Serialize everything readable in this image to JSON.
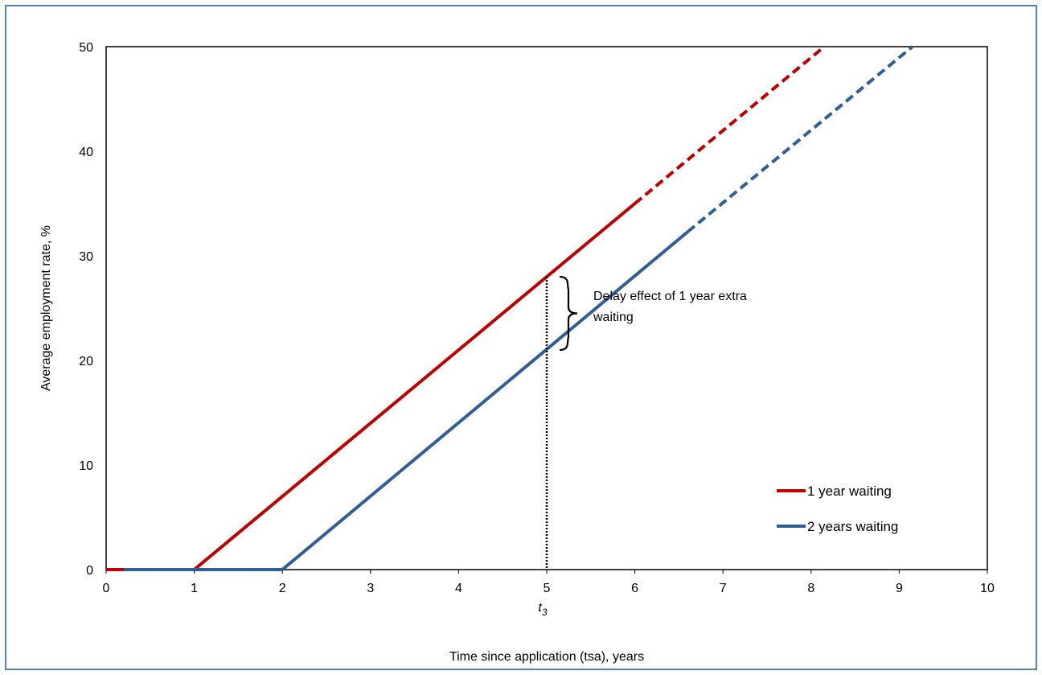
{
  "chart_data": {
    "type": "line",
    "title": "",
    "xlabel": "Time since application (tsa), years",
    "ylabel": "Average employment rate, %",
    "xlim": [
      0,
      10
    ],
    "ylim": [
      0,
      50
    ],
    "x_ticks": [
      0,
      1,
      2,
      3,
      4,
      5,
      6,
      7,
      8,
      9,
      10
    ],
    "y_ticks": [
      0,
      10,
      20,
      30,
      40,
      50
    ],
    "grid": false,
    "legend_position": "bottom-right",
    "series": [
      {
        "name": "1 year waiting",
        "color": "#c00000",
        "solid": [
          [
            0,
            0
          ],
          [
            1,
            0
          ],
          [
            6,
            35
          ]
        ],
        "dashed": [
          [
            6,
            35
          ],
          [
            8.15,
            50
          ]
        ]
      },
      {
        "name": "2 years waiting",
        "color": "#2f5f98",
        "solid": [
          [
            0.2,
            0
          ],
          [
            2,
            0
          ],
          [
            6.6,
            32.3
          ]
        ],
        "dashed": [
          [
            6.6,
            32.3
          ],
          [
            9.15,
            50
          ]
        ]
      }
    ],
    "annotations": {
      "vline_x": 5,
      "vline_y_top": 28,
      "vline_label": "t",
      "vline_label_sub": "3",
      "brace_y_top": 28,
      "brace_y_bottom": 21,
      "brace_text_line1": "Delay effect of 1 year extra",
      "brace_text_line2": "waiting"
    }
  }
}
